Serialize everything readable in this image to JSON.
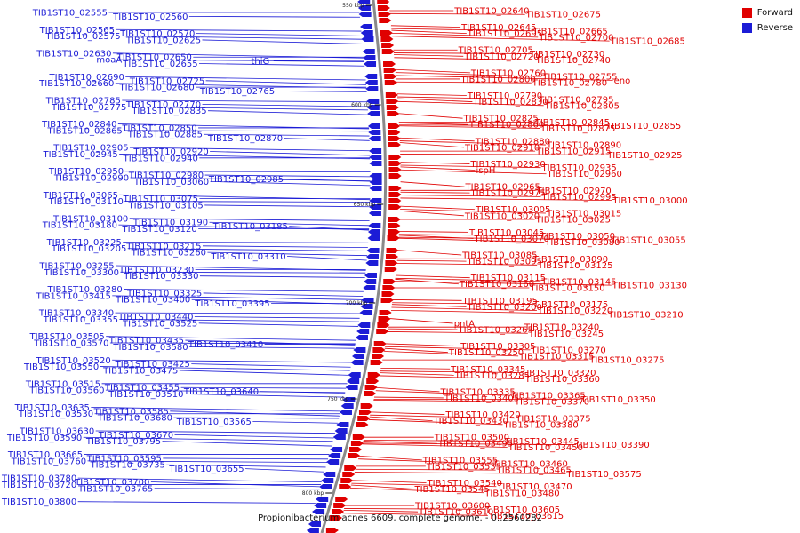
{
  "caption": "Propionibacterium acnes 6609, complete genome. - 0..2560282",
  "legend": {
    "forward_label": "Forward",
    "reverse_label": "Reverse",
    "forward_color": "#e00000",
    "reverse_color": "#1c1cd6"
  },
  "scale_marks": [
    "550 kbp",
    "600 kbp",
    "650 kbp",
    "700 kbp",
    "750 kbp",
    "800 kbp"
  ],
  "reverse_genes": [
    "TIB1ST10_02555",
    "TIB1ST10_02560",
    "TIB1ST10_02565",
    "TIB1ST10_02570",
    "TIB1ST10_02575",
    "TIB1ST10_02625",
    "TIB1ST10_02630",
    "TIB1ST10_02650",
    "thiG",
    "moaA",
    "TIB1ST10_02655",
    "TIB1ST10_02690",
    "TIB1ST10_02725",
    "TIB1ST10_02660",
    "TIB1ST10_02680",
    "TIB1ST10_02765",
    "TIB1ST10_02785",
    "TIB1ST10_02770",
    "TIB1ST10_02775",
    "TIB1ST10_02835",
    "TIB1ST10_02840",
    "TIB1ST10_02850",
    "TIB1ST10_02865",
    "TIB1ST10_02885",
    "TIB1ST10_02870",
    "TIB1ST10_02905",
    "TIB1ST10_02920",
    "TIB1ST10_02945",
    "TIB1ST10_02940",
    "TIB1ST10_02950",
    "TIB1ST10_02980",
    "TIB1ST10_02985",
    "TIB1ST10_02990",
    "TIB1ST10_03060",
    "TIB1ST10_03065",
    "TIB1ST10_03075",
    "TIB1ST10_03110",
    "TIB1ST10_03105",
    "TIB1ST10_03100",
    "TIB1ST10_03190",
    "TIB1ST10_03185",
    "TIB1ST10_03180",
    "TIB1ST10_03120",
    "TIB1ST10_03225",
    "TIB1ST10_03215",
    "TIB1ST10_03205",
    "TIB1ST10_03260",
    "TIB1ST10_03310",
    "TIB1ST10_03255",
    "TIB1ST10_03230",
    "TIB1ST10_03300",
    "TIB1ST10_03330",
    "TIB1ST10_03280",
    "TIB1ST10_03325",
    "TIB1ST10_03415",
    "TIB1ST10_03400",
    "TIB1ST10_03395",
    "TIB1ST10_03340",
    "TIB1ST10_03440",
    "TIB1ST10_03355",
    "TIB1ST10_03525",
    "TIB1ST10_03505",
    "TIB1ST10_03435",
    "TIB1ST10_03410",
    "TIB1ST10_03570",
    "TIB1ST10_03580",
    "TIB1ST10_03520",
    "TIB1ST10_03425",
    "TIB1ST10_03550",
    "TIB1ST10_03475",
    "TIB1ST10_03515",
    "TIB1ST10_03455",
    "TIB1ST10_03640",
    "TIB1ST10_03560",
    "TIB1ST10_03510",
    "TIB1ST10_03635",
    "TIB1ST10_03585",
    "TIB1ST10_03530",
    "TIB1ST10_03680",
    "TIB1ST10_03565",
    "TIB1ST10_03630",
    "TIB1ST10_03670",
    "TIB1ST10_03590",
    "TIB1ST10_03795",
    "TIB1ST10_03665",
    "TIB1ST10_03595",
    "TIB1ST10_03760",
    "TIB1ST10_03735",
    "TIB1ST10_03655",
    "TIB1ST10_03780",
    "TIB1ST10_03700",
    "TIB1ST10_03720",
    "TIB1ST10_03765",
    "TIB1ST10_03800"
  ],
  "forward_genes": [
    "TIB1ST10_02640",
    "TIB1ST10_02675",
    "TIB1ST10_02645",
    "TIB1ST10_02665",
    "TIB1ST10_02695",
    "TIB1ST10_02700",
    "TIB1ST10_02685",
    "TIB1ST10_02705",
    "TIB1ST10_02730",
    "TIB1ST10_02720",
    "TIB1ST10_02740",
    "TIB1ST10_02760",
    "TIB1ST10_02755",
    "eno",
    "TIB1ST10_02800",
    "TIB1ST10_02780",
    "TIB1ST10_02790",
    "TIB1ST10_02795",
    "TIB1ST10_02830",
    "TIB1ST10_02805",
    "TIB1ST10_02825",
    "TIB1ST10_02845",
    "TIB1ST10_02855",
    "TIB1ST10_02860",
    "TIB1ST10_02875",
    "TIB1ST10_02880",
    "TIB1ST10_02890",
    "TIB1ST10_02910",
    "TIB1ST10_02915",
    "TIB1ST10_02925",
    "TIB1ST10_02930",
    "TIB1ST10_02935",
    "ispH",
    "TIB1ST10_02960",
    "TIB1ST10_02965",
    "TIB1ST10_02970",
    "TIB1ST10_02975",
    "TIB1ST10_02995",
    "TIB1ST10_03000",
    "TIB1ST10_03005",
    "TIB1ST10_03015",
    "TIB1ST10_03020",
    "TIB1ST10_03025",
    "TIB1ST10_03045",
    "TIB1ST10_03050",
    "TIB1ST10_03055",
    "TIB1ST10_03070",
    "TIB1ST10_03080",
    "TIB1ST10_03085",
    "TIB1ST10_03090",
    "TIB1ST10_03095",
    "TIB1ST10_03125",
    "TIB1ST10_03115",
    "TIB1ST10_03145",
    "TIB1ST10_03130",
    "TIB1ST10_03160",
    "TIB1ST10_03150",
    "TIB1ST10_03195",
    "TIB1ST10_03175",
    "TIB1ST10_03200",
    "TIB1ST10_03220",
    "TIB1ST10_03210",
    "pntA",
    "TIB1ST10_03240",
    "TIB1ST10_03265",
    "TIB1ST10_03245",
    "TIB1ST10_03305",
    "TIB1ST10_03270",
    "TIB1ST10_03250",
    "TIB1ST10_03315",
    "TIB1ST10_03275",
    "TIB1ST10_03345",
    "TIB1ST10_03320",
    "TIB1ST10_03285",
    "TIB1ST10_03360",
    "TIB1ST10_03335",
    "TIB1ST10_03365",
    "TIB1ST10_03350",
    "TIB1ST10_03405",
    "TIB1ST10_03370",
    "TIB1ST10_03420",
    "TIB1ST10_03375",
    "TIB1ST10_03430",
    "TIB1ST10_03380",
    "TIB1ST10_03500",
    "TIB1ST10_03445",
    "TIB1ST10_03390",
    "TIB1ST10_03495",
    "TIB1ST10_03450",
    "TIB1ST10_03555",
    "TIB1ST10_03460",
    "TIB1ST10_03535",
    "TIB1ST10_03465",
    "TIB1ST10_03575",
    "TIB1ST10_03540",
    "TIB1ST10_03470",
    "TIB1ST10_03545",
    "TIB1ST10_03480",
    "TIB1ST10_03600",
    "TIB1ST10_03605",
    "TIB1ST10_03610",
    "TIB1ST10_03615"
  ]
}
